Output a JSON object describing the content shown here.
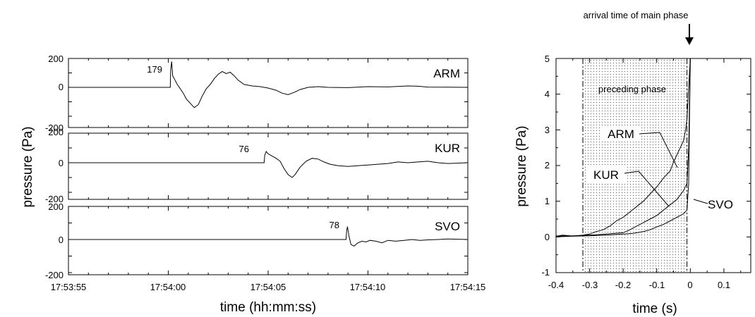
{
  "chart_data": [
    {
      "type": "line",
      "ylabel": "pressure (Pa)",
      "xlabel": "time (hh:mm:ss)",
      "x_ticks": [
        "17:53:55",
        "17:54:00",
        "17:54:05",
        "17:54:10",
        "17:54:15"
      ],
      "x_range_seconds": [
        0,
        20
      ],
      "panels": [
        {
          "station": "ARM",
          "peak_label": "179",
          "ylim": [
            -200,
            200
          ],
          "y_ticks": [
            "200",
            "0",
            "-200"
          ],
          "onset_seconds": 5.1,
          "values": [
            [
              0,
              0
            ],
            [
              5.1,
              0
            ],
            [
              5.12,
              120
            ],
            [
              5.17,
              179
            ],
            [
              5.22,
              80
            ],
            [
              5.3,
              60
            ],
            [
              5.45,
              20
            ],
            [
              5.6,
              -10
            ],
            [
              5.75,
              -40
            ],
            [
              5.9,
              -80
            ],
            [
              6.1,
              -110
            ],
            [
              6.3,
              -140
            ],
            [
              6.5,
              -120
            ],
            [
              6.7,
              -60
            ],
            [
              6.9,
              -10
            ],
            [
              7.1,
              20
            ],
            [
              7.3,
              60
            ],
            [
              7.5,
              90
            ],
            [
              7.7,
              110
            ],
            [
              7.9,
              95
            ],
            [
              8.1,
              105
            ],
            [
              8.3,
              80
            ],
            [
              8.5,
              50
            ],
            [
              8.8,
              20
            ],
            [
              9.2,
              10
            ],
            [
              9.6,
              5
            ],
            [
              10.0,
              -5
            ],
            [
              10.4,
              -20
            ],
            [
              10.7,
              -40
            ],
            [
              11.0,
              -50
            ],
            [
              11.3,
              -35
            ],
            [
              11.6,
              -15
            ],
            [
              12.0,
              0
            ],
            [
              12.5,
              5
            ],
            [
              13.0,
              0
            ],
            [
              14.0,
              -2
            ],
            [
              15.0,
              5
            ],
            [
              16.0,
              3
            ],
            [
              17.0,
              10
            ],
            [
              17.5,
              8
            ],
            [
              18.0,
              2
            ],
            [
              20.0,
              0
            ]
          ]
        },
        {
          "station": "KUR",
          "peak_label": "76",
          "ylim": [
            -200,
            200
          ],
          "y_ticks": [
            "200",
            "0",
            "-200"
          ],
          "onset_seconds": 9.8,
          "values": [
            [
              0,
              0
            ],
            [
              9.8,
              0
            ],
            [
              9.83,
              50
            ],
            [
              9.9,
              76
            ],
            [
              10.0,
              60
            ],
            [
              10.2,
              45
            ],
            [
              10.4,
              30
            ],
            [
              10.6,
              10
            ],
            [
              10.8,
              -40
            ],
            [
              11.0,
              -80
            ],
            [
              11.2,
              -100
            ],
            [
              11.35,
              -80
            ],
            [
              11.6,
              -30
            ],
            [
              11.9,
              10
            ],
            [
              12.2,
              30
            ],
            [
              12.5,
              25
            ],
            [
              12.8,
              5
            ],
            [
              13.1,
              -10
            ],
            [
              13.5,
              -20
            ],
            [
              14.0,
              -25
            ],
            [
              14.5,
              -20
            ],
            [
              15.0,
              -15
            ],
            [
              15.5,
              -10
            ],
            [
              16.0,
              -5
            ],
            [
              16.5,
              5
            ],
            [
              17.0,
              0
            ],
            [
              17.5,
              5
            ],
            [
              18.0,
              10
            ],
            [
              18.5,
              0
            ],
            [
              19.0,
              -5
            ],
            [
              20.0,
              0
            ]
          ]
        },
        {
          "station": "SVO",
          "peak_label": "78",
          "ylim": [
            -200,
            200
          ],
          "y_ticks": [
            "200",
            "0",
            "-200"
          ],
          "onset_seconds": 13.9,
          "values": [
            [
              0,
              0
            ],
            [
              13.9,
              0
            ],
            [
              13.93,
              50
            ],
            [
              13.97,
              78
            ],
            [
              14.05,
              20
            ],
            [
              14.15,
              -30
            ],
            [
              14.3,
              -40
            ],
            [
              14.5,
              -20
            ],
            [
              14.7,
              -10
            ],
            [
              14.9,
              -15
            ],
            [
              15.1,
              -5
            ],
            [
              15.4,
              -10
            ],
            [
              15.7,
              -20
            ],
            [
              16.0,
              -5
            ],
            [
              16.4,
              -10
            ],
            [
              16.8,
              -5
            ],
            [
              17.2,
              0
            ],
            [
              17.6,
              -5
            ],
            [
              18.0,
              -2
            ],
            [
              18.5,
              0
            ],
            [
              19.0,
              3
            ],
            [
              20.0,
              0
            ]
          ]
        }
      ]
    },
    {
      "type": "line",
      "title": "arrival time of main phase",
      "xlabel": "time (s)",
      "ylabel": "pressure (Pa)",
      "xlim": [
        -0.4,
        0.18
      ],
      "ylim": [
        -1,
        5
      ],
      "x_ticks": [
        "-0.4",
        "-0.3",
        "-0.2",
        "-0.1",
        "0",
        "0.1"
      ],
      "y_ticks": [
        "5",
        "4",
        "3",
        "2",
        "1",
        "0",
        "-1"
      ],
      "annotation": "preceding phase",
      "preceding_phase_range": [
        -0.32,
        -0.01
      ],
      "series": [
        {
          "name": "ARM",
          "x": [
            -0.4,
            -0.38,
            -0.35,
            -0.32,
            -0.3,
            -0.28,
            -0.26,
            -0.24,
            -0.22,
            -0.2,
            -0.18,
            -0.16,
            -0.14,
            -0.12,
            -0.1,
            -0.08,
            -0.06,
            -0.05,
            -0.04,
            -0.03,
            -0.02,
            -0.015,
            -0.01,
            -0.005,
            0.0
          ],
          "y": [
            0.02,
            0.05,
            0.02,
            0.05,
            0.08,
            0.15,
            0.2,
            0.3,
            0.45,
            0.55,
            0.7,
            0.85,
            1.0,
            1.2,
            1.4,
            1.65,
            1.85,
            2.1,
            2.3,
            2.5,
            2.7,
            2.95,
            3.3,
            4.2,
            5.0
          ]
        },
        {
          "name": "KUR",
          "x": [
            -0.4,
            -0.35,
            -0.3,
            -0.25,
            -0.2,
            -0.18,
            -0.16,
            -0.14,
            -0.12,
            -0.1,
            -0.08,
            -0.06,
            -0.04,
            -0.02,
            -0.01,
            -0.005,
            0.0
          ],
          "y": [
            0.02,
            0.03,
            0.05,
            0.08,
            0.12,
            0.2,
            0.3,
            0.4,
            0.5,
            0.6,
            0.75,
            0.9,
            1.05,
            1.3,
            1.5,
            2.5,
            5.0
          ]
        },
        {
          "name": "SVO",
          "x": [
            -0.4,
            -0.35,
            -0.3,
            -0.25,
            -0.2,
            -0.17,
            -0.14,
            -0.12,
            -0.1,
            -0.08,
            -0.06,
            -0.04,
            -0.02,
            -0.01,
            -0.005,
            0.0
          ],
          "y": [
            0.0,
            0.02,
            0.03,
            0.05,
            0.08,
            0.1,
            0.15,
            0.2,
            0.28,
            0.35,
            0.45,
            0.55,
            0.65,
            0.75,
            1.5,
            5.0
          ]
        }
      ]
    }
  ]
}
